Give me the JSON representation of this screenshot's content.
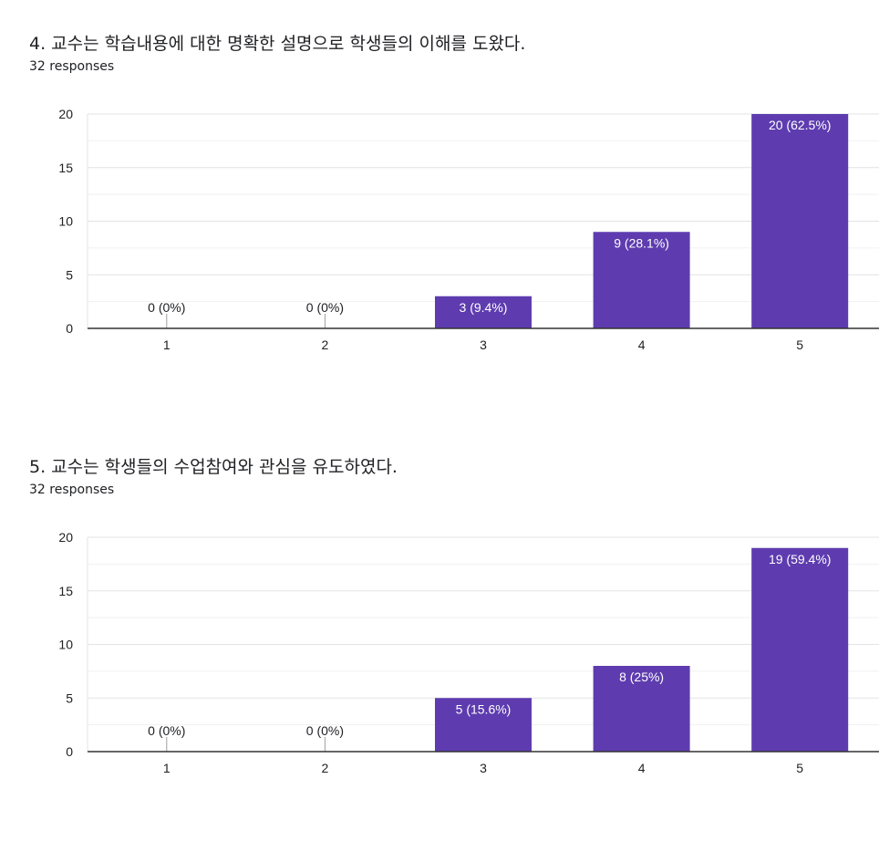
{
  "accent_color": "#5e3caf",
  "questions": [
    {
      "title": "4. 교수는 학습내용에 대한 명확한 설명으로 학생들의 이해를 도왔다.",
      "responses_text": "32 responses"
    },
    {
      "title": "5. 교수는 학생들의 수업참여와 관심을 유도하였다.",
      "responses_text": "32 responses"
    }
  ],
  "chart_data": [
    {
      "type": "bar",
      "categories": [
        "1",
        "2",
        "3",
        "4",
        "5"
      ],
      "values": [
        0,
        0,
        3,
        9,
        20
      ],
      "labels": [
        "0 (0%)",
        "0 (0%)",
        "3 (9.4%)",
        "9 (28.1%)",
        "20 (62.5%)"
      ],
      "ylim": [
        0,
        20
      ],
      "yticks": [
        0,
        5,
        10,
        15,
        20
      ],
      "grid": true,
      "bar_color": "#5e3caf"
    },
    {
      "type": "bar",
      "categories": [
        "1",
        "2",
        "3",
        "4",
        "5"
      ],
      "values": [
        0,
        0,
        5,
        8,
        19
      ],
      "labels": [
        "0 (0%)",
        "0 (0%)",
        "5 (15.6%)",
        "8 (25%)",
        "19 (59.4%)"
      ],
      "ylim": [
        0,
        20
      ],
      "yticks": [
        0,
        5,
        10,
        15,
        20
      ],
      "grid": true,
      "bar_color": "#5e3caf"
    }
  ]
}
